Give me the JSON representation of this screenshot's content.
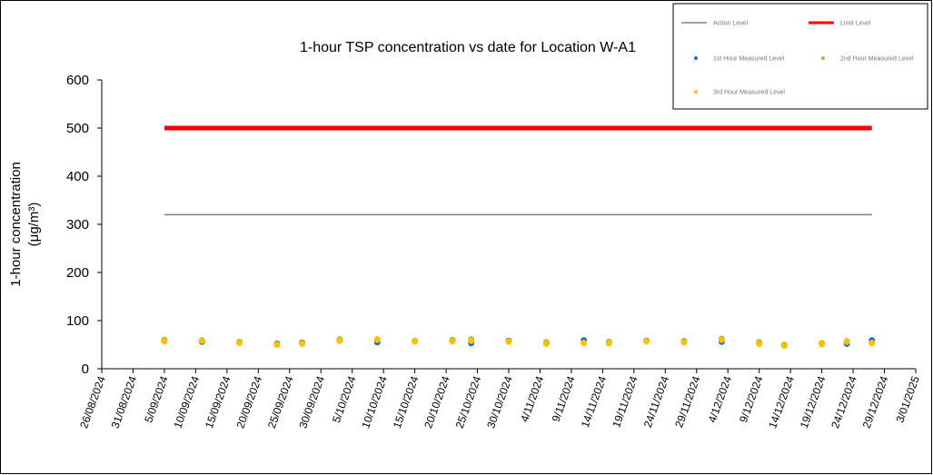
{
  "chart_data": {
    "type": "scatter",
    "title": "1-hour TSP concentration vs date for Location W-A1",
    "y_label": [
      "1-hour concentration",
      "(μg/m³)"
    ],
    "xlim": [
      "2024-08-26",
      "2025-01-03"
    ],
    "xticks": [
      {
        "value": "2024-08-26",
        "label": "26/08/2024"
      },
      {
        "value": "2024-08-31",
        "label": "31/08/2024"
      },
      {
        "value": "2024-09-05",
        "label": "5/09/2024"
      },
      {
        "value": "2024-09-10",
        "label": "10/09/2024"
      },
      {
        "value": "2024-09-15",
        "label": "15/09/2024"
      },
      {
        "value": "2024-09-20",
        "label": "20/09/2024"
      },
      {
        "value": "2024-09-25",
        "label": "25/09/2024"
      },
      {
        "value": "2024-09-30",
        "label": "30/09/2024"
      },
      {
        "value": "2024-10-05",
        "label": "5/10/2024"
      },
      {
        "value": "2024-10-10",
        "label": "10/10/2024"
      },
      {
        "value": "2024-10-15",
        "label": "15/10/2024"
      },
      {
        "value": "2024-10-20",
        "label": "20/10/2024"
      },
      {
        "value": "2024-10-25",
        "label": "25/10/2024"
      },
      {
        "value": "2024-10-30",
        "label": "30/10/2024"
      },
      {
        "value": "2024-11-04",
        "label": "4/11/2024"
      },
      {
        "value": "2024-11-09",
        "label": "9/11/2024"
      },
      {
        "value": "2024-11-14",
        "label": "14/11/2024"
      },
      {
        "value": "2024-11-19",
        "label": "19/11/2024"
      },
      {
        "value": "2024-11-24",
        "label": "24/11/2024"
      },
      {
        "value": "2024-11-29",
        "label": "29/11/2024"
      },
      {
        "value": "2024-12-04",
        "label": "4/12/2024"
      },
      {
        "value": "2024-12-09",
        "label": "9/12/2024"
      },
      {
        "value": "2024-12-14",
        "label": "14/12/2024"
      },
      {
        "value": "2024-12-19",
        "label": "19/12/2024"
      },
      {
        "value": "2024-12-24",
        "label": "24/12/2024"
      },
      {
        "value": "2024-12-29",
        "label": "29/12/2024"
      },
      {
        "value": "2025-01-03",
        "label": "3/01/2025"
      }
    ],
    "ylim": [
      0,
      600
    ],
    "yticks": [
      0,
      100,
      200,
      300,
      400,
      500,
      600
    ],
    "legend": "upper right",
    "series": [
      {
        "name": "Action Level",
        "style": "line",
        "color": "#808080",
        "x": [
          "2024-09-05",
          "2024-12-27"
        ],
        "values": [
          320,
          320
        ]
      },
      {
        "name": "Limit Level",
        "style": "line",
        "color": "#ff0000",
        "x": [
          "2024-09-05",
          "2024-12-27"
        ],
        "values": [
          500,
          500
        ]
      },
      {
        "name": "1st Hour Measured Level",
        "style": "marker",
        "color": "#1f6fc5",
        "x": [
          "2024-09-05",
          "2024-09-11",
          "2024-09-17",
          "2024-09-23",
          "2024-09-27",
          "2024-10-03",
          "2024-10-09",
          "2024-10-15",
          "2024-10-21",
          "2024-10-24",
          "2024-10-30",
          "2024-11-05",
          "2024-11-11",
          "2024-11-15",
          "2024-11-21",
          "2024-11-27",
          "2024-12-03",
          "2024-12-09",
          "2024-12-13",
          "2024-12-19",
          "2024-12-23",
          "2024-12-27"
        ],
        "values": [
          58,
          56,
          55,
          52,
          54,
          59,
          55,
          57,
          58,
          53,
          58,
          54,
          59,
          55,
          58,
          57,
          56,
          53,
          48,
          52,
          52,
          59
        ]
      },
      {
        "name": "2nd Hour Measured Level",
        "style": "marker",
        "color": "#8dc63f",
        "x": [
          "2024-09-05",
          "2024-09-11",
          "2024-09-17",
          "2024-09-23",
          "2024-09-27",
          "2024-10-03",
          "2024-10-09",
          "2024-10-15",
          "2024-10-21",
          "2024-10-24",
          "2024-10-30",
          "2024-11-05",
          "2024-11-11",
          "2024-11-15",
          "2024-11-21",
          "2024-11-27",
          "2024-12-03",
          "2024-12-09",
          "2024-12-13",
          "2024-12-19",
          "2024-12-23",
          "2024-12-27"
        ],
        "values": [
          60,
          59,
          56,
          50,
          53,
          61,
          60,
          58,
          60,
          61,
          57,
          55,
          54,
          56,
          57,
          56,
          62,
          55,
          50,
          53,
          57,
          54
        ]
      },
      {
        "name": "3rd Hour Measured Level",
        "style": "marker",
        "color": "#ffc000",
        "x": [
          "2024-09-05",
          "2024-09-11",
          "2024-09-17",
          "2024-09-23",
          "2024-09-27",
          "2024-10-03",
          "2024-10-09",
          "2024-10-15",
          "2024-10-21",
          "2024-10-24",
          "2024-10-30",
          "2024-11-05",
          "2024-11-11",
          "2024-11-15",
          "2024-11-21",
          "2024-11-27",
          "2024-12-03",
          "2024-12-09",
          "2024-12-13",
          "2024-12-19",
          "2024-12-23",
          "2024-12-27"
        ],
        "values": [
          57,
          58,
          54,
          50,
          52,
          58,
          61,
          57,
          57,
          58,
          56,
          52,
          53,
          53,
          57,
          55,
          60,
          52,
          48,
          51,
          56,
          53
        ]
      }
    ]
  }
}
